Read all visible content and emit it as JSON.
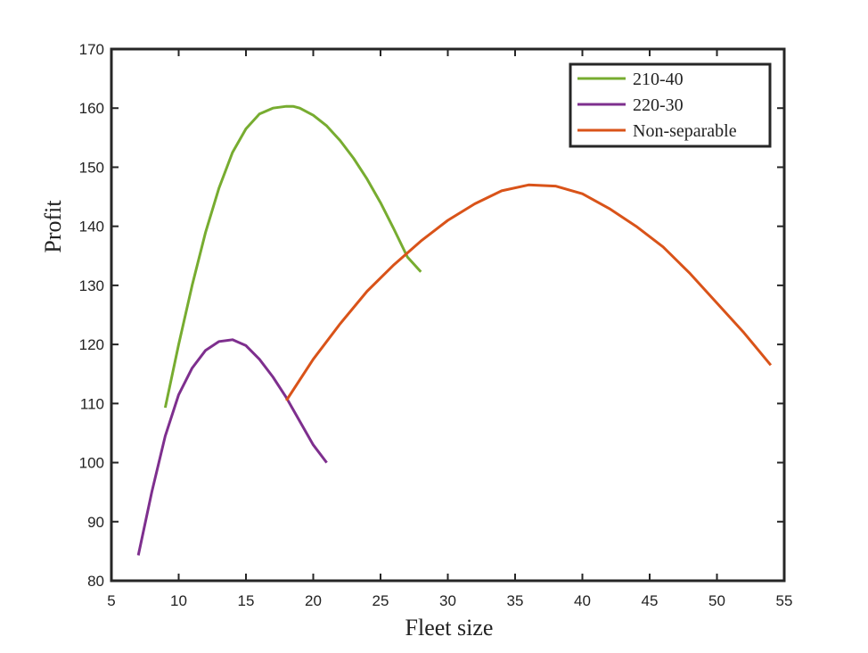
{
  "chart_data": {
    "type": "line",
    "title": "",
    "xlabel": "Fleet size",
    "ylabel": "Profit",
    "xlim": [
      5,
      55
    ],
    "ylim": [
      80,
      170
    ],
    "xticks": [
      5,
      10,
      15,
      20,
      25,
      30,
      35,
      40,
      45,
      50,
      55
    ],
    "yticks": [
      80,
      90,
      100,
      110,
      120,
      130,
      140,
      150,
      160,
      170
    ],
    "grid": false,
    "legend_position": "top-right",
    "series": [
      {
        "name": "210-40",
        "color": "#77ac30",
        "x": [
          9,
          10,
          11,
          12,
          13,
          14,
          15,
          16,
          17,
          18,
          18.5,
          19,
          20,
          21,
          22,
          23,
          24,
          25,
          26,
          27,
          28
        ],
        "y": [
          109.3,
          120,
          130,
          139,
          146.5,
          152.5,
          156.5,
          159,
          160,
          160.3,
          160.3,
          160,
          158.8,
          157,
          154.5,
          151.5,
          148,
          144,
          139.5,
          134.8,
          132.3
        ]
      },
      {
        "name": "220-30",
        "color": "#7e2f8e",
        "x": [
          7,
          8,
          9,
          10,
          11,
          12,
          13,
          14,
          15,
          16,
          17,
          18,
          19,
          20,
          21
        ],
        "y": [
          84.3,
          95,
          104.5,
          111.5,
          116,
          119,
          120.5,
          120.8,
          119.8,
          117.5,
          114.5,
          111,
          107,
          103,
          100
        ]
      },
      {
        "name": "Non-separable",
        "color": "#d95319",
        "x": [
          18,
          20,
          22,
          24,
          26,
          28,
          30,
          32,
          34,
          36,
          38,
          40,
          42,
          44,
          46,
          48,
          50,
          52,
          54
        ],
        "y": [
          110.5,
          117.5,
          123.5,
          129,
          133.5,
          137.5,
          141,
          143.8,
          146,
          147,
          146.8,
          145.5,
          143,
          140,
          136.5,
          132,
          127,
          122,
          116.5
        ]
      }
    ]
  }
}
